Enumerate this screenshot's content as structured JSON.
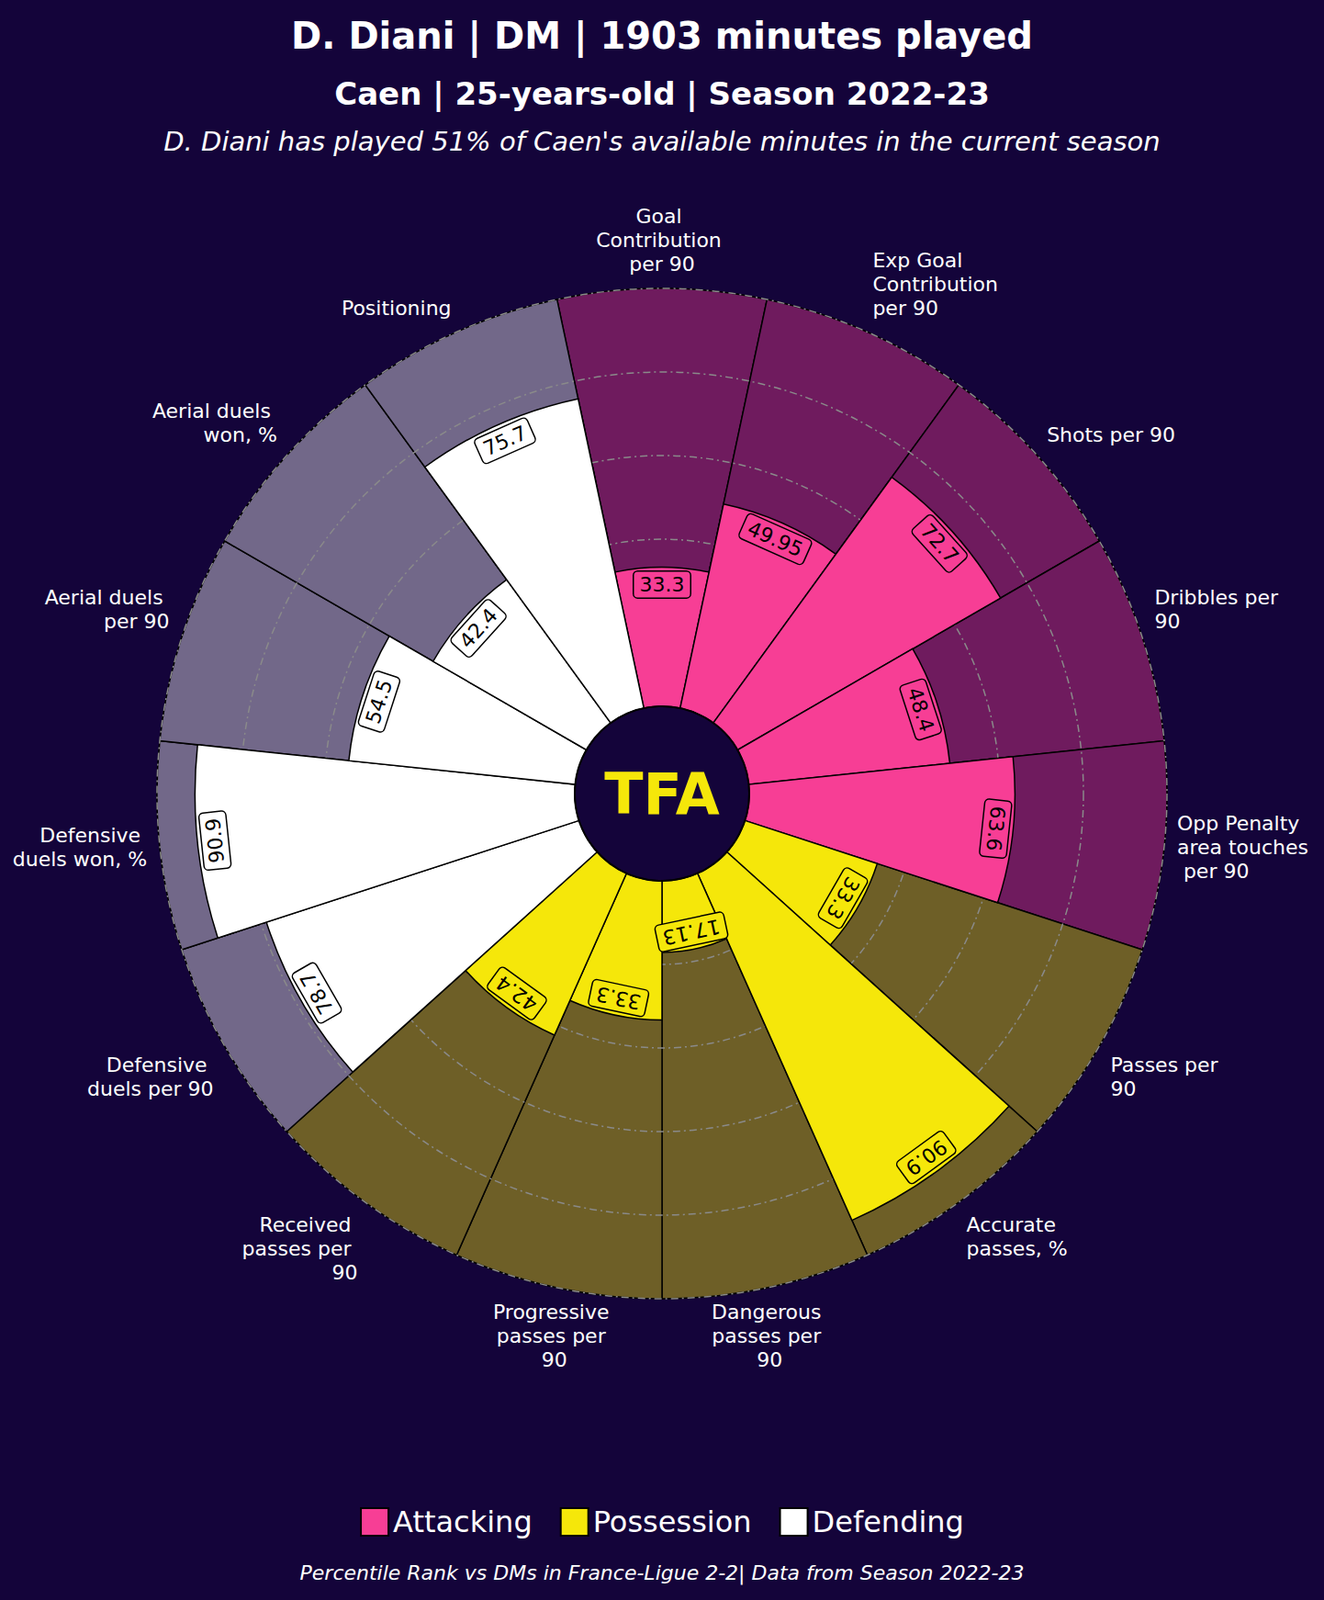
{
  "chart_data": {
    "type": "polar_bar",
    "title": "D. Diani | DM | 1903 minutes played",
    "subtitle": "Caen | 25-years-old | Season 2022-23",
    "annotation": "D. Diani has played 51% of Caen's available minutes in the current season",
    "footnote": "Percentile Rank vs DMs in France-Ligue 2-2| Data from Season 2022-23",
    "logo": "TFA",
    "categories": [
      "Goal Contribution per 90",
      "Exp Goal Contribution per 90",
      "Shots per 90",
      "Dribbles per 90",
      "Opp Penalty area touches per 90",
      "Passes per 90",
      "Accurate passes, %",
      "Dangerous passes per 90",
      "Progressive passes per 90",
      "Received passes per 90",
      "Defensive duels per 90",
      "Defensive duels won, %",
      "Aerial duels per 90",
      "Aerial duels won, %",
      "Positioning"
    ],
    "series": [
      {
        "name": "Attacking",
        "color": "#f73e95",
        "values": [
          33.3,
          49.95,
          72.7,
          48.4,
          63.6,
          null,
          null,
          null,
          null,
          null,
          null,
          null,
          null,
          null,
          null
        ]
      },
      {
        "name": "Possession",
        "color": "#f5e70a",
        "values": [
          null,
          null,
          null,
          null,
          null,
          33.3,
          90.9,
          17.13,
          33.3,
          42.4,
          null,
          null,
          null,
          null,
          null
        ]
      },
      {
        "name": "Defending",
        "color": "#ffffff",
        "values": [
          null,
          null,
          null,
          null,
          null,
          null,
          null,
          null,
          null,
          null,
          78.7,
          90.9,
          54.5,
          42.4,
          75.7
        ]
      }
    ],
    "ylim": [
      0,
      100
    ],
    "yticks": [
      0,
      20,
      40,
      60,
      80,
      100
    ],
    "grid": true,
    "data_labels": true,
    "tick_labels": false,
    "legend": "bottom"
  }
}
